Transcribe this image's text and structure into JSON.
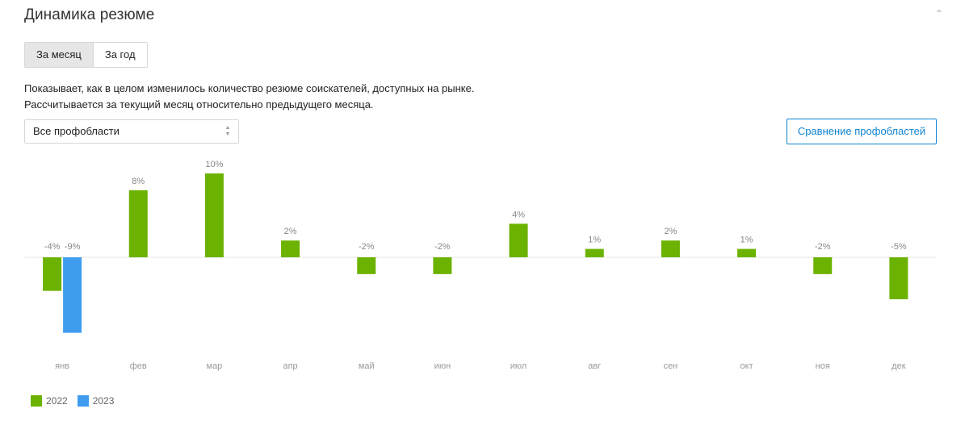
{
  "header": {
    "title": "Динамика резюме"
  },
  "tabs": [
    {
      "label": "За месяц",
      "active": true
    },
    {
      "label": "За год",
      "active": false
    }
  ],
  "description": {
    "line1": "Показывает, как в целом изменилось количество резюме соискателей, доступных на рынке.",
    "line2": "Рассчитывается за текущий месяц относительно предыдущего месяца."
  },
  "filter": {
    "selected": "Все профобласти"
  },
  "compare_button": {
    "label": "Сравнение профобластей"
  },
  "colors": {
    "s2022": "#6cb200",
    "s2023": "#3f9cee"
  },
  "chart_data": {
    "type": "bar",
    "categories": [
      "янв",
      "фев",
      "мар",
      "апр",
      "май",
      "июн",
      "июл",
      "авг",
      "сен",
      "окт",
      "ноя",
      "дек"
    ],
    "series": [
      {
        "name": "2022",
        "values": [
          -4,
          8,
          10,
          2,
          -2,
          -2,
          4,
          1,
          2,
          1,
          -2,
          -5
        ]
      },
      {
        "name": "2023",
        "values": [
          -9,
          null,
          null,
          null,
          null,
          null,
          null,
          null,
          null,
          null,
          null,
          null
        ]
      }
    ],
    "data_labels": {
      "2022": [
        "-4%",
        "8%",
        "10%",
        "2%",
        "-2%",
        "-2%",
        "4%",
        "1%",
        "2%",
        "1%",
        "-2%",
        "-5%"
      ],
      "2023": [
        "-9%"
      ]
    },
    "legend": [
      "2022",
      "2023"
    ],
    "legend_position": "bottom-left",
    "unit": "%",
    "grid": false
  }
}
